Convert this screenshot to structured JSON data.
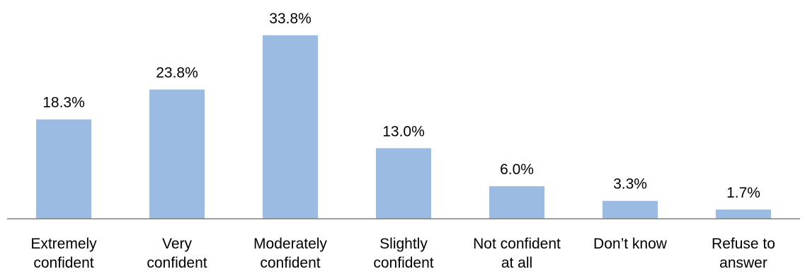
{
  "chart_data": {
    "type": "bar",
    "categories": [
      [
        "Extremely",
        "confident"
      ],
      [
        "Very",
        "confident"
      ],
      [
        "Moderately",
        "confident"
      ],
      [
        "Slightly",
        "confident"
      ],
      [
        "Not confident",
        "at all"
      ],
      [
        "Don’t know"
      ],
      [
        "Refuse to",
        "answer"
      ]
    ],
    "values": [
      18.3,
      23.8,
      33.8,
      13.0,
      6.0,
      3.3,
      1.7
    ],
    "data_labels": [
      "18.3%",
      "23.8%",
      "33.8%",
      "13.0%",
      "6.0%",
      "3.3%",
      "1.7%"
    ],
    "title": "",
    "xlabel": "",
    "ylabel": "",
    "ylim": [
      0,
      40
    ],
    "grid": false,
    "legend": "none",
    "colors": {
      "bar": "#9bbbe3",
      "axis": "#808080",
      "text": "#000000"
    }
  }
}
